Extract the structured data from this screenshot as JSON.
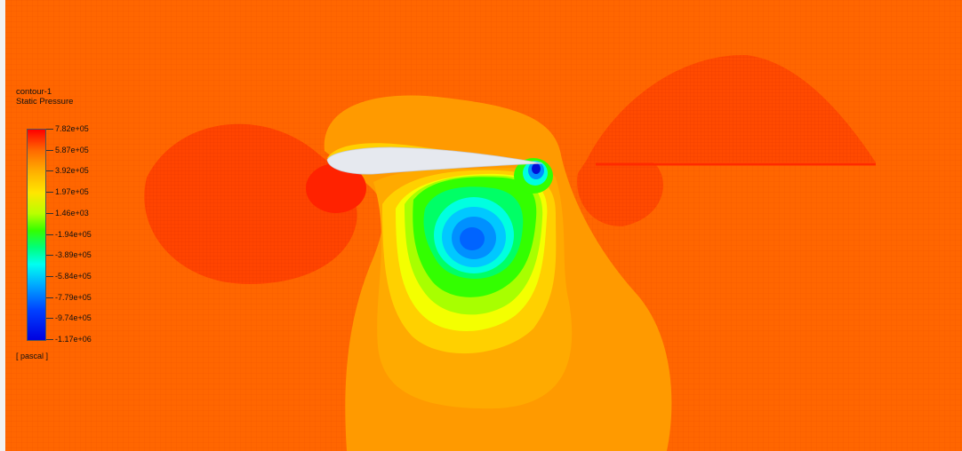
{
  "legend": {
    "name": "contour-1",
    "variable": "Static Pressure",
    "ticks": [
      "7.82e+05",
      "5.87e+05",
      "3.92e+05",
      "1.97e+05",
      "1.46e+03",
      "-1.94e+05",
      "-3.89e+05",
      "-5.84e+05",
      "-7.79e+05",
      "-9.74e+05",
      "-1.17e+06"
    ],
    "unit": "[ pascal ]"
  },
  "colors": {
    "background": "#ff6600",
    "high": "#ff0000",
    "low": "#0000e0",
    "airfoil": "#e6e9ef"
  }
}
